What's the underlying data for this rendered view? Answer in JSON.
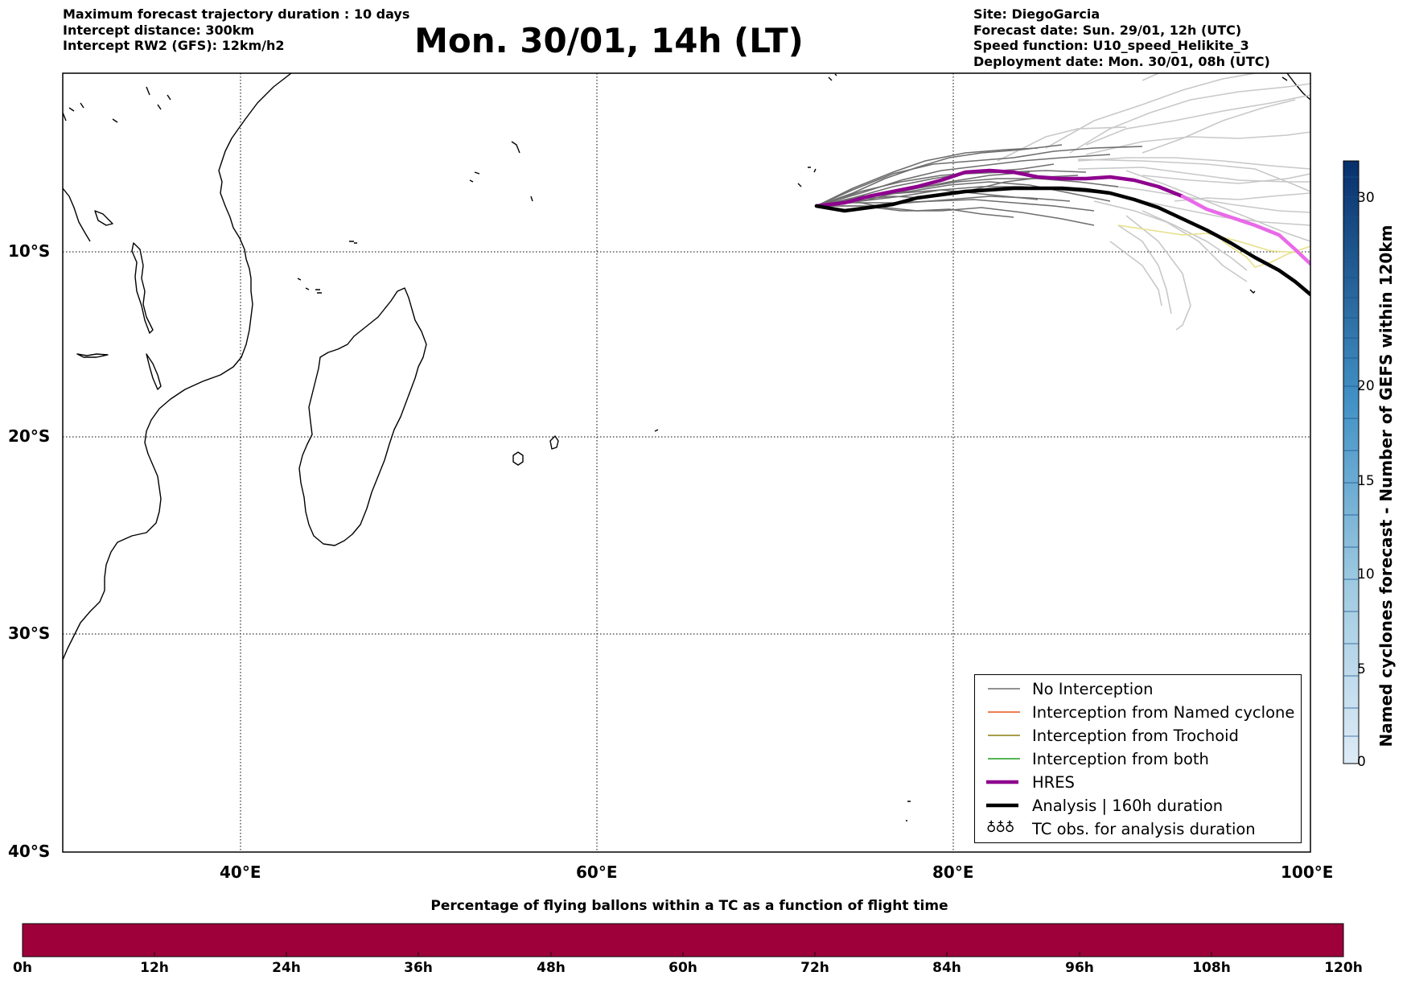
{
  "header": {
    "left_lines": [
      "Maximum forecast trajectory duration : 10 days",
      "Intercept distance: 300km",
      "Intercept RW2 (GFS):  12km/h2"
    ],
    "title": "Mon. 30/01, 14h (LT)",
    "right_lines": [
      "Site: DiegoGarcia",
      "Forecast date: Sun. 29/01, 12h (UTC)",
      "Speed function: U10_speed_Helikite_3",
      "Deployment date: Mon. 30/01, 08h (UTC)"
    ]
  },
  "map": {
    "lon_range": [
      30,
      100
    ],
    "lat_range": [
      -40,
      0
    ],
    "lat_ticks": [
      "10°S",
      "20°S",
      "30°S",
      "40°S"
    ],
    "lon_ticks": [
      "40°E",
      "60°E",
      "80°E",
      "100°E"
    ],
    "colors": {
      "no_interception": "#6e6e6e",
      "named_cyclone": "#e8551b",
      "trochoid": "#8b7d0f",
      "both": "#1f9a1f",
      "hres": "#8e008e",
      "analysis": "#000000"
    }
  },
  "legend": {
    "items": [
      {
        "label": "No Interception",
        "icon": "gray-line"
      },
      {
        "label": "Interception from Named cyclone",
        "icon": "orange-line"
      },
      {
        "label": "Interception from Trochoid",
        "icon": "olive-line"
      },
      {
        "label": "Interception from both",
        "icon": "green-line"
      },
      {
        "label": "HRES",
        "icon": "purple-thick-line"
      },
      {
        "label": "Analysis | 160h duration",
        "icon": "black-thick-line"
      },
      {
        "label": "TC obs. for analysis duration",
        "icon": "cyclone-symbols-icon",
        "symbol": "♁♁♁"
      }
    ]
  },
  "colorbar": {
    "label": "Named cyclones forecast - Number of GEFS within 120km",
    "ticks": [
      "0",
      "5",
      "10",
      "15",
      "20",
      "30"
    ],
    "range": [
      0,
      32
    ],
    "colors": [
      "#dfebf7",
      "#08306b"
    ]
  },
  "percentage_bar": {
    "title": "Percentage of flying ballons within a TC as a function of flight time",
    "ticks": [
      "0h",
      "12h",
      "24h",
      "36h",
      "48h",
      "60h",
      "72h",
      "84h",
      "96h",
      "108h",
      "120h"
    ],
    "fill_color": "#9e003a"
  }
}
